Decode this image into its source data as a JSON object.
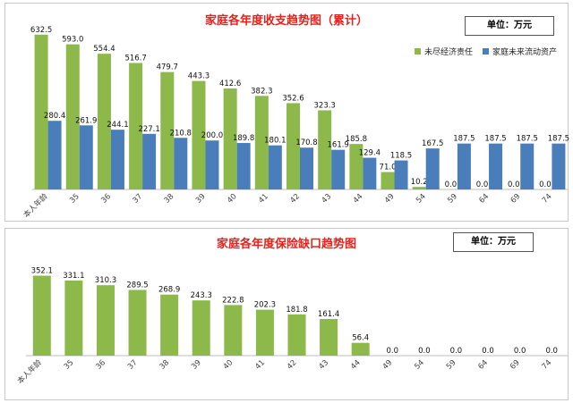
{
  "chart_data": [
    {
      "type": "bar",
      "title": "家庭各年度收支趋势图（累计）",
      "unit_label": "单位：万元",
      "legend_position": "right",
      "categories": [
        "本人年龄",
        "35",
        "36",
        "37",
        "38",
        "39",
        "40",
        "41",
        "42",
        "43",
        "44",
        "49",
        "54",
        "59",
        "64",
        "69",
        "74"
      ],
      "series": [
        {
          "name": "未尽经济责任",
          "color": "#8db84a",
          "values": [
            632.5,
            593.0,
            554.4,
            516.7,
            479.7,
            443.3,
            412.6,
            382.3,
            352.6,
            323.3,
            185.8,
            71.0,
            10.2,
            0.0,
            0.0,
            0.0,
            0.0
          ]
        },
        {
          "name": "家庭未来流动资产",
          "color": "#4a7ebb",
          "values": [
            280.4,
            261.9,
            244.1,
            227.1,
            210.8,
            200.0,
            189.8,
            180.1,
            170.8,
            161.9,
            129.4,
            118.5,
            167.5,
            187.5,
            187.5,
            187.5,
            187.5
          ]
        }
      ],
      "ylim": [
        0,
        650
      ],
      "grid": false
    },
    {
      "type": "bar",
      "title": "家庭各年度保险缺口趋势图",
      "unit_label": "单位：万元",
      "categories": [
        "本人年龄",
        "35",
        "36",
        "37",
        "38",
        "39",
        "40",
        "41",
        "42",
        "43",
        "44",
        "49",
        "54",
        "59",
        "64",
        "69",
        "74"
      ],
      "series": [
        {
          "color": "#8db84a",
          "values": [
            352.1,
            331.1,
            310.3,
            289.5,
            268.9,
            243.3,
            222.8,
            202.3,
            181.8,
            161.4,
            56.4,
            0.0,
            0.0,
            0.0,
            0.0,
            0.0,
            0.0
          ]
        }
      ],
      "ylim": [
        0,
        370
      ],
      "grid": false
    }
  ]
}
